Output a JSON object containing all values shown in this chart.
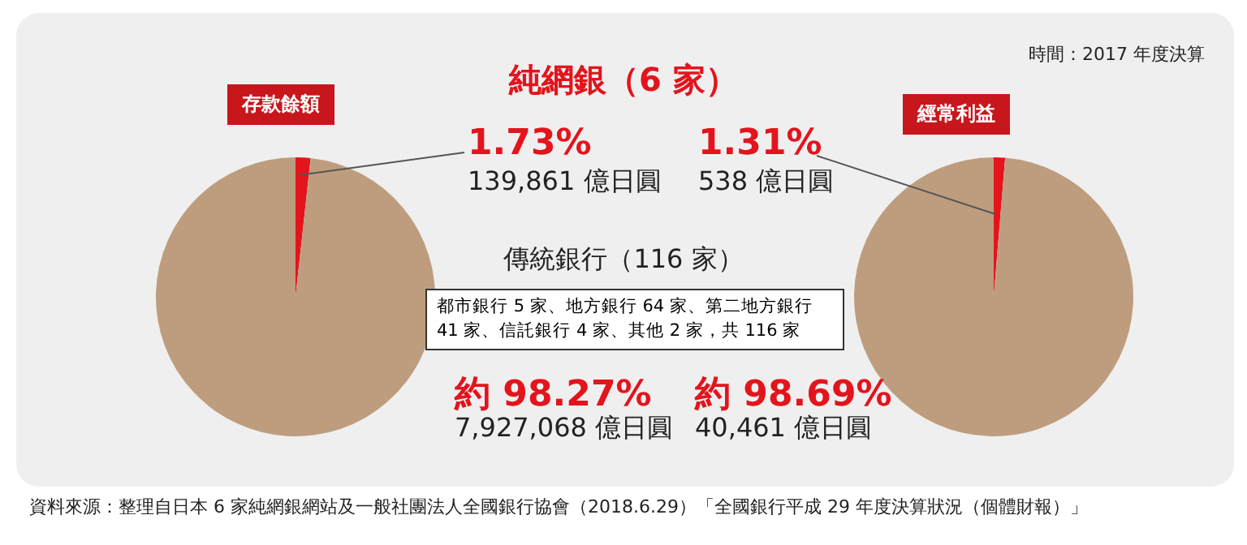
{
  "chart_data": [
    {
      "type": "pie",
      "title": "存款餘額",
      "categories": [
        null,
        null
      ],
      "values": [
        1.73,
        98.27
      ],
      "colors": [
        "#e3141c",
        "#be9d7e"
      ],
      "value_labels": [
        "1.73%",
        "約 98.27%"
      ],
      "legend": false,
      "annotations": [
        "139,861 億日圓",
        "7,927,068 億日圓",
        "都市銀行 5 家、地方銀行 64 家、第二地方銀行 41 家、信託銀行 4 家、其他 2 家，共 116 家",
        "時間：2017 年度決算",
        "資料來源：整理自日本 6 家純網銀網站及一般社團法人全國銀行協會（2018.6.29）「全國銀行平成 29 年度決算狀況（個體財報）」",
        "純網銀（6 家）",
        "傳統銀行（116 家）"
      ]
    },
    {
      "type": "pie",
      "title": "經常利益",
      "categories": [
        null,
        null
      ],
      "values": [
        1.31,
        98.69
      ],
      "colors": [
        "#e3141c",
        "#be9d7e"
      ],
      "value_labels": [
        "1.31%",
        "約 98.69%"
      ],
      "legend": false,
      "annotations": [
        "538 億日圓",
        "40,461 億日圓"
      ]
    }
  ]
}
